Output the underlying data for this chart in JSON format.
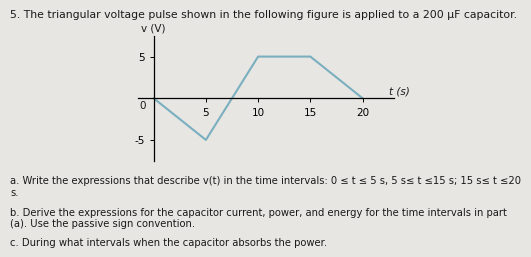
{
  "title": "5. The triangular voltage pulse shown in the following figure is applied to a 200 μF capacitor.",
  "xlabel": "t (s)",
  "ylabel": "v (V)",
  "x_data": [
    0,
    5,
    10,
    15,
    20
  ],
  "y_data": [
    0,
    -5,
    5,
    5,
    0
  ],
  "line_color": "#7aafc0",
  "line_width": 1.5,
  "xlim": [
    -1.5,
    23
  ],
  "ylim": [
    -7.5,
    7.5
  ],
  "xticks": [
    5,
    10,
    15,
    20
  ],
  "yticks": [
    -5,
    5
  ],
  "background_color": "#e8e6e2",
  "text_color": "#1a1a1a",
  "title_fontsize": 7.8,
  "axis_fontsize": 7.5,
  "tick_fontsize": 7.5,
  "annotation_fontsize": 7.2,
  "ann_a": "a. Write the expressions that describe v(t) in the time intervals: 0 ≤ t ≤ 5 s, 5 s≤ t ≤15 s; 15 s≤ t ≤20\ns.",
  "ann_b": "b. Derive the expressions for the capacitor current, power, and energy for the time intervals in part\n(a). Use the passive sign convention.",
  "ann_c": "c. During what intervals when the capacitor absorbs the power."
}
